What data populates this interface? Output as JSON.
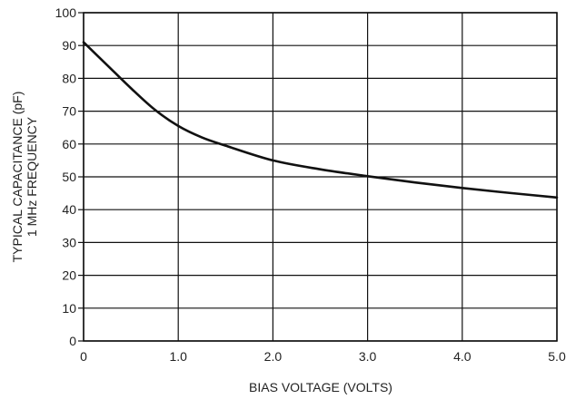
{
  "chart_data": {
    "type": "line",
    "title": "",
    "xlabel": "BIAS VOLTAGE (VOLTS)",
    "ylabel_lines": [
      "TYPICAL CAPACITANCE (pF)",
      "1 MHz FREQUENCY"
    ],
    "xlim": [
      0,
      5.0
    ],
    "ylim": [
      0,
      100
    ],
    "x_ticks": [
      0,
      1.0,
      2.0,
      3.0,
      4.0,
      5.0
    ],
    "x_tick_labels": [
      "0",
      "1.0",
      "2.0",
      "3.0",
      "4.0",
      "5.0"
    ],
    "y_ticks": [
      0,
      10,
      20,
      30,
      40,
      50,
      60,
      70,
      80,
      90,
      100
    ],
    "y_tick_labels": [
      "0",
      "10",
      "20",
      "30",
      "40",
      "50",
      "60",
      "70",
      "80",
      "90",
      "100"
    ],
    "grid": true,
    "legend": "none",
    "line_color": "#111111",
    "grid_color": "#111111",
    "series": [
      {
        "x": [
          0,
          0.25,
          0.5,
          0.75,
          1.0,
          1.25,
          1.5,
          2.0,
          2.5,
          3.0,
          3.5,
          4.0,
          4.5,
          5.0
        ],
        "values": [
          91,
          84,
          77,
          70.5,
          65.5,
          62,
          59.5,
          55,
          52.3,
          50.2,
          48.3,
          46.6,
          45.1,
          43.7
        ]
      }
    ]
  }
}
